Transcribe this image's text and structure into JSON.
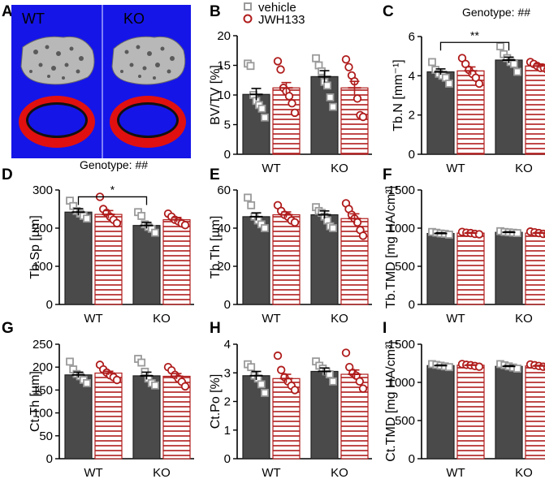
{
  "image_panel": {
    "label": "A",
    "left_label": "WT",
    "right_label": "KO",
    "colors": {
      "background": "#1515e8",
      "cortex": "#e01010",
      "marrow": "#111111",
      "trabecular": "#b8b8b8"
    }
  },
  "legend": {
    "items": [
      {
        "name": "vehicle",
        "marker": "square",
        "color": "#9a9a9a"
      },
      {
        "name": "JWH133",
        "marker": "circle",
        "color": "#b01c1c"
      }
    ]
  },
  "colors": {
    "vehicle_bar": "#4a4a4a",
    "jwh_stripe": "#b01c1c",
    "vehicle_point": "#9a9a9a",
    "jwh_point": "#b01c1c"
  },
  "chart_data": [
    {
      "panel": "B",
      "type": "bar",
      "ylabel": "BV/TV [%]",
      "ylim": [
        0,
        20
      ],
      "yticks": [
        "0",
        "5",
        "10",
        "15",
        "20"
      ],
      "categories": [
        "WT",
        "KO"
      ],
      "series": [
        {
          "name": "vehicle",
          "values": [
            10.1,
            13.1
          ],
          "sem": [
            1.0,
            1.0
          ],
          "points": [
            [
              15.3,
              14.9,
              10.0,
              9.0,
              8.3,
              7.7,
              6.2
            ],
            [
              16.2,
              15.0,
              14.0,
              12.2,
              11.6,
              9.6,
              8.0
            ]
          ]
        },
        {
          "name": "JWH133",
          "values": [
            11.2,
            11.2
          ],
          "sem": [
            0.9,
            1.1
          ],
          "points": [
            [
              15.7,
              14.3,
              11.2,
              10.6,
              9.8,
              8.6,
              7.0
            ],
            [
              16.0,
              14.7,
              13.3,
              12.3,
              9.4,
              6.6,
              6.3
            ]
          ]
        }
      ]
    },
    {
      "panel": "C",
      "type": "bar",
      "ylabel": "Tb.N [mm⁻¹]",
      "ylim": [
        0,
        6
      ],
      "yticks": [
        "0",
        "2",
        "4",
        "6"
      ],
      "categories": [
        "WT",
        "KO"
      ],
      "annotation": "Genotype: ##",
      "bracket": {
        "from": [
          "WT",
          "vehicle"
        ],
        "to": [
          "KO",
          "vehicle"
        ],
        "y": 5.7,
        "label": "**"
      },
      "series": [
        {
          "name": "vehicle",
          "values": [
            4.2,
            4.8
          ],
          "sem": [
            0.15,
            0.15
          ],
          "points": [
            [
              4.7,
              4.3,
              4.1,
              4.0,
              3.9,
              3.6
            ],
            [
              5.5,
              5.1,
              4.9,
              4.7,
              4.6,
              4.2
            ]
          ]
        },
        {
          "name": "JWH133",
          "values": [
            4.25,
            4.5
          ],
          "sem": [
            0.2,
            0.1
          ],
          "points": [
            [
              4.9,
              4.6,
              4.3,
              4.1,
              3.9,
              3.6
            ],
            [
              4.7,
              4.6,
              4.5,
              4.4,
              4.4,
              4.3
            ]
          ]
        }
      ]
    },
    {
      "panel": "D",
      "type": "bar",
      "ylabel": "Tb.Sp [µm]",
      "ylim": [
        0,
        300
      ],
      "yticks": [
        "0",
        "100",
        "200",
        "300"
      ],
      "categories": [
        "WT",
        "KO"
      ],
      "annotation": "Genotype: ##",
      "bracket": {
        "from": [
          "WT",
          "vehicle"
        ],
        "to": [
          "KO",
          "vehicle"
        ],
        "y": 282,
        "label": "*"
      },
      "series": [
        {
          "name": "vehicle",
          "values": [
            242,
            207
          ],
          "sem": [
            9,
            8
          ],
          "points": [
            [
              272,
              258,
              245,
              238,
              232,
              225
            ],
            [
              242,
              232,
              210,
              203,
              198,
              188
            ]
          ]
        },
        {
          "name": "JWH133",
          "values": [
            236,
            222
          ],
          "sem": [
            10,
            6
          ],
          "points": [
            [
              282,
              250,
              240,
              230,
              222,
              213
            ],
            [
              238,
              230,
              222,
              218,
              212,
              208
            ]
          ]
        }
      ]
    },
    {
      "panel": "E",
      "type": "bar",
      "ylabel": "Tb.Th [µm]",
      "ylim": [
        0,
        60
      ],
      "yticks": [
        "0",
        "20",
        "40",
        "60"
      ],
      "categories": [
        "WT",
        "KO"
      ],
      "series": [
        {
          "name": "vehicle",
          "values": [
            46,
            47
          ],
          "sem": [
            2,
            2
          ],
          "points": [
            [
              56,
              52,
              46,
              44,
              42,
              40
            ],
            [
              51,
              49,
              48,
              46,
              44,
              41,
              40
            ]
          ]
        },
        {
          "name": "JWH133",
          "values": [
            47,
            45
          ],
          "sem": [
            1.5,
            2.5
          ],
          "points": [
            [
              52,
              49,
              47,
              46,
              44,
              43
            ],
            [
              53,
              50,
              47,
              45,
              43,
              39,
              36
            ]
          ]
        }
      ]
    },
    {
      "panel": "F",
      "type": "bar",
      "ylabel": "Tb.TMD [mg HA/cm³]",
      "ylim": [
        0,
        1500
      ],
      "yticks": [
        "0",
        "500",
        "1000",
        "1500"
      ],
      "categories": [
        "WT",
        "KO"
      ],
      "series": [
        {
          "name": "vehicle",
          "values": [
            930,
            945
          ],
          "sem": [
            10,
            8
          ],
          "points": [
            [
              950,
              940,
              930,
              925,
              915
            ],
            [
              960,
              950,
              945,
              940,
              935
            ]
          ]
        },
        {
          "name": "JWH133",
          "values": [
            935,
            935
          ],
          "sem": [
            8,
            8
          ],
          "points": [
            [
              950,
              940,
              935,
              925,
              920
            ],
            [
              955,
              945,
              935,
              925,
              915
            ]
          ]
        }
      ]
    },
    {
      "panel": "G",
      "type": "bar",
      "ylabel": "Ct.Th [µm]",
      "ylim": [
        0,
        250
      ],
      "yticks": [
        "0",
        "50",
        "100",
        "150",
        "200",
        "250"
      ],
      "categories": [
        "WT",
        "KO"
      ],
      "series": [
        {
          "name": "vehicle",
          "values": [
            183,
            181
          ],
          "sem": [
            6,
            8
          ],
          "points": [
            [
              212,
              195,
              185,
              180,
              172,
              165
            ],
            [
              218,
              210,
              190,
              175,
              165,
              160
            ]
          ]
        },
        {
          "name": "JWH133",
          "values": [
            187,
            180
          ],
          "sem": [
            4,
            6
          ],
          "points": [
            [
              205,
              195,
              188,
              182,
              178,
              172
            ],
            [
              200,
              193,
              183,
              175,
              168,
              158
            ]
          ]
        }
      ]
    },
    {
      "panel": "H",
      "type": "bar",
      "ylabel": "Ct.Po [%]",
      "ylim": [
        0,
        4
      ],
      "yticks": [
        "0",
        "1",
        "2",
        "3",
        "4"
      ],
      "categories": [
        "WT",
        "KO"
      ],
      "series": [
        {
          "name": "vehicle",
          "values": [
            2.9,
            3.05
          ],
          "sem": [
            0.15,
            0.12
          ],
          "points": [
            [
              3.3,
              3.2,
              2.9,
              2.8,
              2.6,
              2.3
            ],
            [
              3.4,
              3.25,
              3.15,
              3.05,
              2.95,
              2.7
            ]
          ]
        },
        {
          "name": "JWH133",
          "values": [
            2.8,
            2.95
          ],
          "sem": [
            0.15,
            0.15
          ],
          "points": [
            [
              3.6,
              3.1,
              2.85,
              2.7,
              2.55,
              2.4
            ],
            [
              3.7,
              3.2,
              3.0,
              2.9,
              2.7,
              2.45
            ]
          ]
        }
      ]
    },
    {
      "panel": "I",
      "type": "bar",
      "ylabel": "Ct.TMD [mg HA/cm³]",
      "ylim": [
        0,
        1500
      ],
      "yticks": [
        "0",
        "500",
        "1000",
        "1500"
      ],
      "categories": [
        "WT",
        "KO"
      ],
      "series": [
        {
          "name": "vehicle",
          "values": [
            1220,
            1210
          ],
          "sem": [
            8,
            10
          ],
          "points": [
            [
              1240,
              1230,
              1220,
              1210,
              1200
            ],
            [
              1240,
              1225,
              1210,
              1195,
              1180
            ]
          ]
        },
        {
          "name": "JWH133",
          "values": [
            1225,
            1215
          ],
          "sem": [
            6,
            8
          ],
          "points": [
            [
              1240,
              1230,
              1225,
              1215,
              1205
            ],
            [
              1235,
              1225,
              1215,
              1205,
              1195
            ]
          ]
        }
      ]
    }
  ]
}
